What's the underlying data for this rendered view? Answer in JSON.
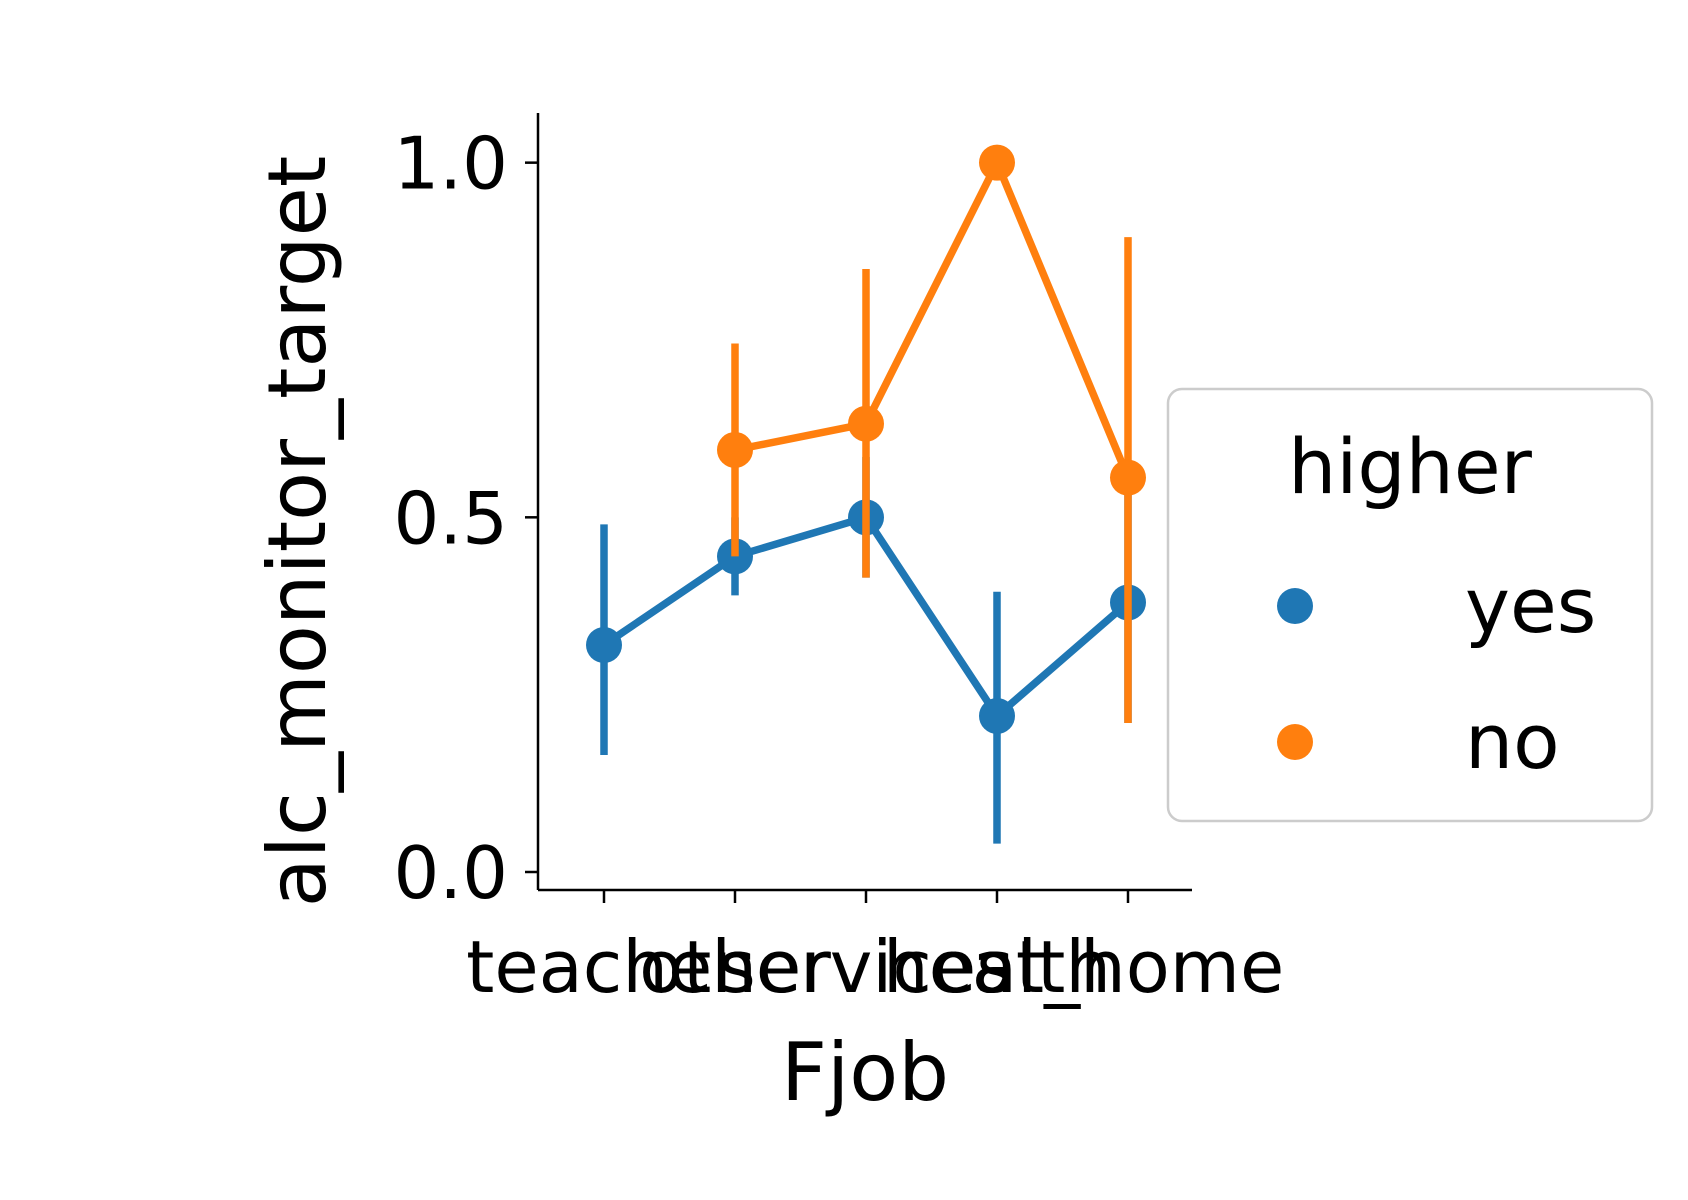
{
  "chart_data": {
    "type": "line",
    "title": "",
    "xlabel": "Fjob",
    "ylabel": "alc_monitor_target",
    "categories": [
      "teacher",
      "other",
      "services",
      "health",
      "at_home"
    ],
    "ylim": [
      0.0,
      1.07
    ],
    "yticks": [
      0.0,
      0.5,
      1.0
    ],
    "ytick_labels": [
      "0.0",
      "0.5",
      "1.0"
    ],
    "grid": false,
    "legend": {
      "title": "higher",
      "placement": "right"
    },
    "series": [
      {
        "name": "yes",
        "color": "#1f77b4",
        "values": [
          0.32,
          0.445,
          0.5,
          0.22,
          0.38
        ],
        "ci_low": [
          0.165,
          0.39,
          0.415,
          0.04,
          0.21
        ],
        "ci_high": [
          0.49,
          0.5,
          0.585,
          0.395,
          0.55
        ]
      },
      {
        "name": "no",
        "color": "#ff7f0e",
        "values": [
          null,
          0.595,
          0.632,
          1.0,
          0.556
        ],
        "ci_low": [
          null,
          0.445,
          0.415,
          1.0,
          0.21
        ],
        "ci_high": [
          null,
          0.745,
          0.85,
          1.0,
          0.895
        ]
      }
    ]
  }
}
